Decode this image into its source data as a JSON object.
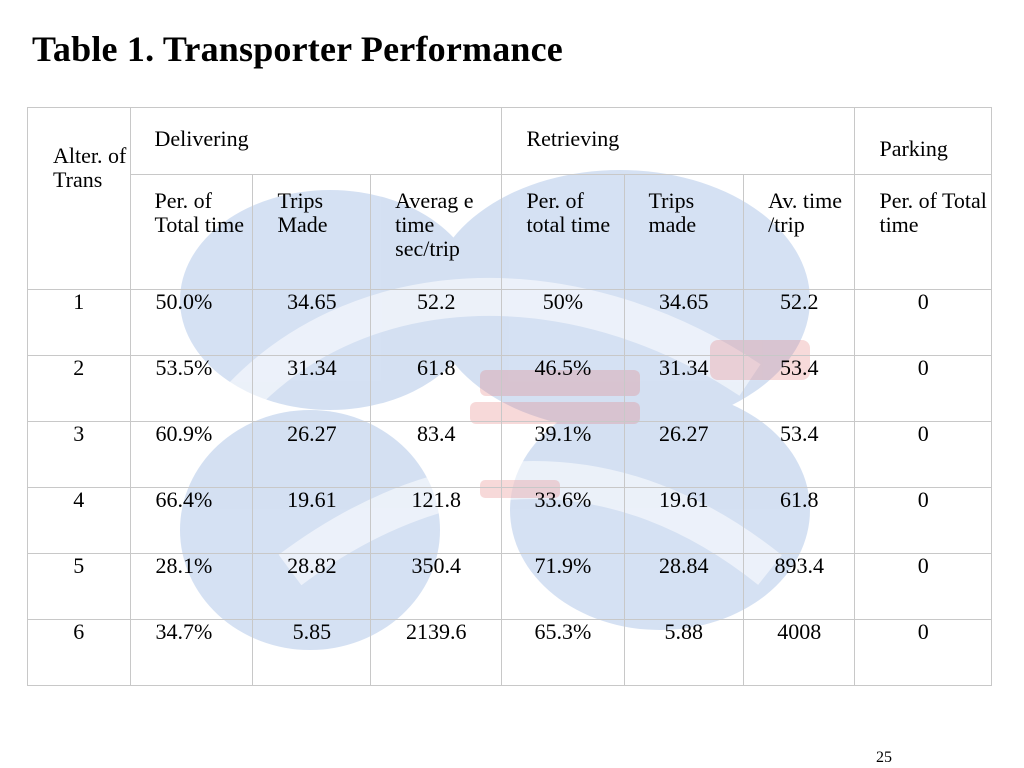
{
  "title": "Table 1. Transporter Performance",
  "table": {
    "alter_header": "Alter. of Trans",
    "groups": [
      {
        "label": "Delivering"
      },
      {
        "label": "Retrieving"
      },
      {
        "label": "Parking"
      }
    ],
    "subheaders": [
      "Per. of Total time",
      "Trips Made",
      "Averag e time sec/trip",
      "Per. of total time",
      "Trips made",
      "Av. time /trip",
      "Per. of Total time"
    ],
    "rows": [
      {
        "alter": "1",
        "values": [
          "50.0%",
          "34.65",
          "52.2",
          "50%",
          "34.65",
          "52.2",
          "0"
        ]
      },
      {
        "alter": "2",
        "values": [
          "53.5%",
          "31.34",
          "61.8",
          "46.5%",
          "31.34",
          "53.4",
          "0"
        ]
      },
      {
        "alter": "3",
        "values": [
          "60.9%",
          "26.27",
          "83.4",
          "39.1%",
          "26.27",
          "53.4",
          "0"
        ]
      },
      {
        "alter": "4",
        "values": [
          "66.4%",
          "19.61",
          "121.8",
          "33.6%",
          "19.61",
          "61.8",
          "0"
        ]
      },
      {
        "alter": "5",
        "values": [
          "28.1%",
          "28.82",
          "350.4",
          "71.9%",
          "28.84",
          "893.4",
          "0"
        ]
      },
      {
        "alter": "6",
        "values": [
          "34.7%",
          "5.85",
          "2139.6",
          "65.3%",
          "5.88",
          "4008",
          "0"
        ]
      }
    ]
  },
  "page_number": "25"
}
